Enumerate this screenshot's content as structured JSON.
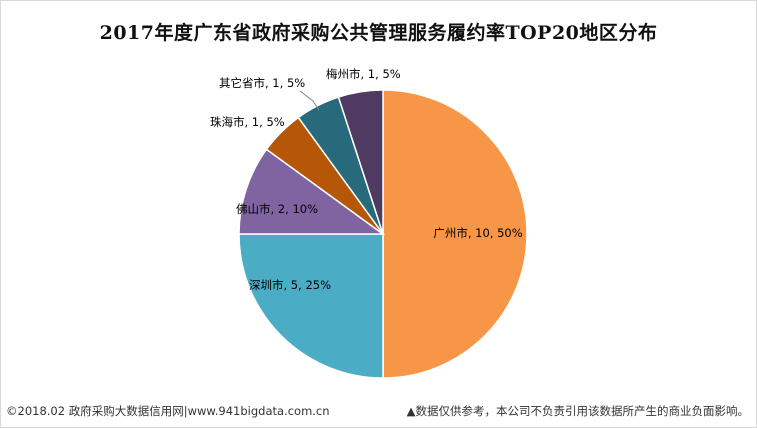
{
  "chart_data": {
    "type": "pie",
    "title": "2017年度广东省政府采购公共管理服务履约率TOP20地区分布",
    "slices": [
      {
        "name": "广州市",
        "value": 10,
        "percent": "50%",
        "label": "广州市, 10, 50%",
        "color": "#F79646"
      },
      {
        "name": "深圳市",
        "value": 5,
        "percent": "25%",
        "label": "深圳市, 5, 25%",
        "color": "#4BACC6"
      },
      {
        "name": "佛山市",
        "value": 2,
        "percent": "10%",
        "label": "佛山市, 2, 10%",
        "color": "#8064A2"
      },
      {
        "name": "珠海市",
        "value": 1,
        "percent": "5%",
        "label": "珠海市, 1, 5%",
        "color": "#B65708"
      },
      {
        "name": "其它省市",
        "value": 1,
        "percent": "5%",
        "label": "其它省市, 1, 5%",
        "color": "#276A7C"
      },
      {
        "name": "梅州市",
        "value": 1,
        "percent": "5%",
        "label": "梅州市, 1, 5%",
        "color": "#4F3B62"
      }
    ]
  },
  "footer": {
    "left": "©2018.02 政府采购大数据信用网|www.941bigdata.com.cn",
    "right": "▲数据仅供参考，本公司不负责引用该数据所产生的商业负面影响。"
  }
}
